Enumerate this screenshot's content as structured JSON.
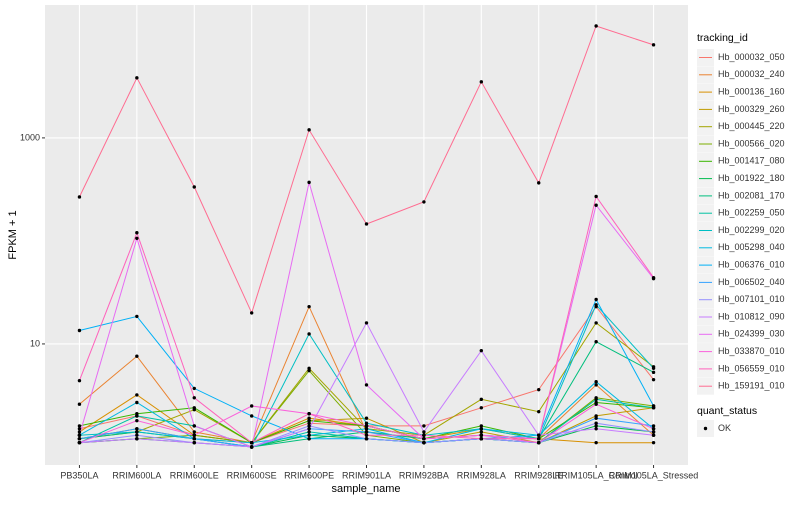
{
  "chart_data": {
    "type": "line",
    "log_y": true,
    "grid": true,
    "x_label": "sample_name",
    "y_label": "FPKM + 1",
    "categories": [
      "PB350LA",
      "RRIM600LA",
      "RRIM600LE",
      "RRIM600SE",
      "RRIM600PE",
      "RRIM901LA",
      "RRIM928BA",
      "RRIM928LA",
      "RRIM928LE",
      "RRIM105LA_Control",
      "RRIM105LA_Stressed"
    ],
    "ylim": [
      0.668,
      19500
    ],
    "yticks": [
      10,
      1000
    ],
    "legend_title": "tracking_id",
    "point_legend": {
      "title": "quant_status",
      "labels": [
        "OK"
      ],
      "color": "#000000"
    },
    "series": [
      {
        "name": "Hb_000032_050",
        "color": "#F8766D",
        "values": [
          1.5,
          2.0,
          1.3,
          1.1,
          1.7,
          1.6,
          1.6,
          2.4,
          3.6,
          23,
          4.5
        ]
      },
      {
        "name": "Hb_000032_240",
        "color": "#EA8331",
        "values": [
          2.6,
          7.6,
          1.4,
          1.1,
          23,
          1.4,
          1.2,
          1.3,
          1.2,
          4.0,
          1.3
        ]
      },
      {
        "name": "Hb_000136_160",
        "color": "#D89000",
        "values": [
          1.4,
          3.2,
          1.3,
          1.1,
          1.9,
          1.6,
          1.2,
          1.5,
          1.2,
          1.1,
          1.1
        ]
      },
      {
        "name": "Hb_000329_260",
        "color": "#C09B00",
        "values": [
          1.2,
          1.5,
          1.2,
          1.1,
          1.8,
          1.9,
          1.1,
          1.4,
          1.1,
          2.0,
          2.4
        ]
      },
      {
        "name": "Hb_000445_220",
        "color": "#A3A500",
        "values": [
          1.2,
          1.4,
          2.3,
          1.1,
          5.8,
          1.5,
          1.3,
          2.9,
          2.2,
          16,
          6.0
        ]
      },
      {
        "name": "Hb_000566_020",
        "color": "#7CAE00",
        "values": [
          1.1,
          1.2,
          1.3,
          1.1,
          5.5,
          1.3,
          1.1,
          1.2,
          1.1,
          3.0,
          2.5
        ]
      },
      {
        "name": "Hb_001417_080",
        "color": "#39B600",
        "values": [
          1.6,
          2.1,
          2.4,
          1.1,
          1.8,
          1.6,
          1.2,
          1.6,
          1.2,
          2.7,
          2.4
        ]
      },
      {
        "name": "Hb_001922_180",
        "color": "#00BB4E",
        "values": [
          1.1,
          1.2,
          1.1,
          1.0,
          1.3,
          1.2,
          1.1,
          1.2,
          1.1,
          1.6,
          1.4
        ]
      },
      {
        "name": "Hb_002081_170",
        "color": "#00BF7D",
        "values": [
          1.2,
          1.4,
          1.2,
          1.0,
          1.2,
          1.4,
          1.2,
          1.3,
          1.2,
          10.5,
          5.3
        ]
      },
      {
        "name": "Hb_002259_050",
        "color": "#00C1A3",
        "values": [
          1.1,
          2.0,
          1.6,
          1.0,
          1.4,
          1.2,
          1.1,
          1.2,
          1.1,
          2.9,
          2.4
        ]
      },
      {
        "name": "Hb_002299_020",
        "color": "#00BFC4",
        "values": [
          1.3,
          1.4,
          1.2,
          1.0,
          12.5,
          1.7,
          1.3,
          1.5,
          1.2,
          24,
          5.8
        ]
      },
      {
        "name": "Hb_005298_040",
        "color": "#00BAE0",
        "values": [
          1.3,
          2.7,
          1.2,
          1.1,
          1.3,
          1.5,
          1.1,
          1.5,
          1.3,
          4.3,
          1.5
        ]
      },
      {
        "name": "Hb_006376_010",
        "color": "#00B0F6",
        "values": [
          13.5,
          18.5,
          3.7,
          2.0,
          1.2,
          1.2,
          1.1,
          1.2,
          1.3,
          27,
          2.5
        ]
      },
      {
        "name": "Hb_006502_040",
        "color": "#35A2FF",
        "values": [
          1.2,
          1.5,
          1.2,
          1.0,
          1.5,
          1.4,
          1.1,
          1.2,
          1.1,
          1.9,
          1.6
        ]
      },
      {
        "name": "Hb_007101_010",
        "color": "#9590FF",
        "values": [
          1.1,
          1.3,
          1.1,
          1.0,
          1.6,
          1.2,
          1.1,
          1.2,
          1.1,
          1.7,
          1.4
        ]
      },
      {
        "name": "Hb_010812_090",
        "color": "#C77CFF",
        "values": [
          1.1,
          1.2,
          1.1,
          1.0,
          1.5,
          16,
          1.4,
          8.6,
          1.3,
          1.5,
          1.3
        ]
      },
      {
        "name": "Hb_024399_030",
        "color": "#E76BF3",
        "values": [
          1.3,
          106,
          1.6,
          1.0,
          370,
          4.0,
          1.2,
          1.3,
          1.2,
          222,
          43
        ]
      },
      {
        "name": "Hb_033870_010",
        "color": "#FA62DB",
        "values": [
          1.1,
          1.8,
          1.3,
          2.5,
          2.1,
          1.6,
          1.2,
          1.3,
          1.1,
          2.6,
          1.5
        ]
      },
      {
        "name": "Hb_056559_010",
        "color": "#FF62BC",
        "values": [
          4.4,
          120,
          3.0,
          1.1,
          2.1,
          1.3,
          1.3,
          1.2,
          1.2,
          270,
          44
        ]
      },
      {
        "name": "Hb_159191_010",
        "color": "#FF6C91",
        "values": [
          267,
          3830,
          334,
          20,
          1197,
          146,
          239,
          3500,
          366,
          12200,
          8000
        ]
      }
    ]
  }
}
